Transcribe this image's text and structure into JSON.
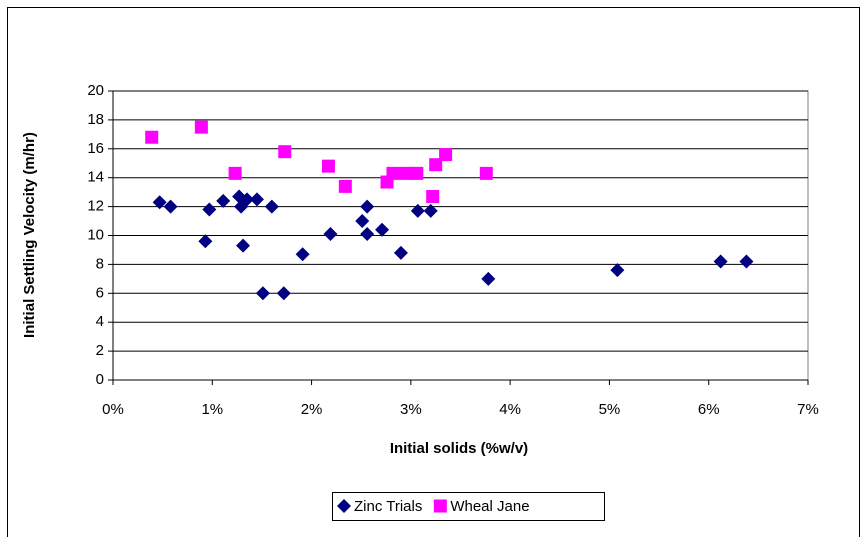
{
  "chart_data": {
    "type": "scatter",
    "x_label": "Initial solids (%w/v)",
    "y_label": "Initial Settling Velocity (m/hr)",
    "xlim": [
      0,
      7
    ],
    "xticks": [
      {
        "value": 0,
        "label": "0%"
      },
      {
        "value": 1,
        "label": "1%"
      },
      {
        "value": 2,
        "label": "2%"
      },
      {
        "value": 3,
        "label": "3%"
      },
      {
        "value": 4,
        "label": "4%"
      },
      {
        "value": 5,
        "label": "5%"
      },
      {
        "value": 6,
        "label": "6%"
      },
      {
        "value": 7,
        "label": "7%"
      }
    ],
    "ylim": [
      0,
      20
    ],
    "yticks": [
      0,
      2,
      4,
      6,
      8,
      10,
      12,
      14,
      16,
      18,
      20
    ],
    "grid": true,
    "legend": "bottom",
    "series": [
      {
        "name": "Zinc Trials",
        "color": "#000080",
        "marker": "diamond",
        "x": [
          0.47,
          0.58,
          0.93,
          0.97,
          1.11,
          1.27,
          1.29,
          1.35,
          1.45,
          1.31,
          1.51,
          1.6,
          1.72,
          1.91,
          2.19,
          2.51,
          2.56,
          2.56,
          2.71,
          2.9,
          3.07,
          3.2,
          3.78,
          5.08,
          6.12,
          6.38
        ],
        "values": [
          12.3,
          12.0,
          9.6,
          11.8,
          12.4,
          12.7,
          12.0,
          12.5,
          12.5,
          9.3,
          6.0,
          12.0,
          6.0,
          8.7,
          10.1,
          11.0,
          12.0,
          10.1,
          10.4,
          8.8,
          11.7,
          11.7,
          7.0,
          7.6,
          8.2,
          8.2
        ]
      },
      {
        "name": "Wheal Jane",
        "color": "#ff00ff",
        "marker": "square",
        "x": [
          0.39,
          0.89,
          1.23,
          1.73,
          2.17,
          2.34,
          2.76,
          2.82,
          2.95,
          3.06,
          3.22,
          3.25,
          3.35,
          3.76
        ],
        "values": [
          16.8,
          17.5,
          14.3,
          15.8,
          14.8,
          13.4,
          13.7,
          14.3,
          14.3,
          14.3,
          12.7,
          14.9,
          15.6,
          14.3
        ]
      }
    ]
  }
}
